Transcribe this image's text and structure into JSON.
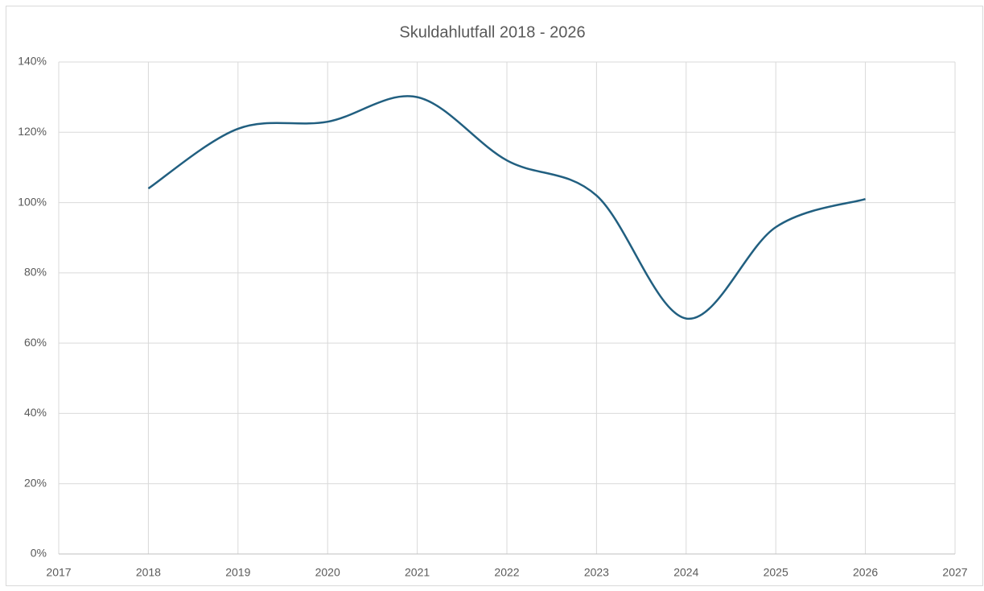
{
  "chart_data": {
    "type": "line",
    "title": "Skuldahlutfall 2018 - 2026",
    "x": [
      2018,
      2019,
      2020,
      2021,
      2022,
      2023,
      2024,
      2025,
      2026
    ],
    "series": [
      {
        "color": "#215f80",
        "values": [
          104,
          121,
          123,
          130,
          112,
          102,
          67,
          93,
          101
        ]
      }
    ],
    "xlim": [
      2017,
      2027
    ],
    "xticks": [
      2017,
      2018,
      2019,
      2020,
      2021,
      2022,
      2023,
      2024,
      2025,
      2026,
      2027
    ],
    "ylim": [
      0,
      140
    ],
    "yticks": [
      {
        "value": 0,
        "label": "0%"
      },
      {
        "value": 20,
        "label": "20%"
      },
      {
        "value": 40,
        "label": "40%"
      },
      {
        "value": 60,
        "label": "60%"
      },
      {
        "value": 80,
        "label": "80%"
      },
      {
        "value": 100,
        "label": "100%"
      },
      {
        "value": 120,
        "label": "120%"
      },
      {
        "value": 140,
        "label": "140%"
      }
    ],
    "grid": true,
    "smooth": true
  }
}
